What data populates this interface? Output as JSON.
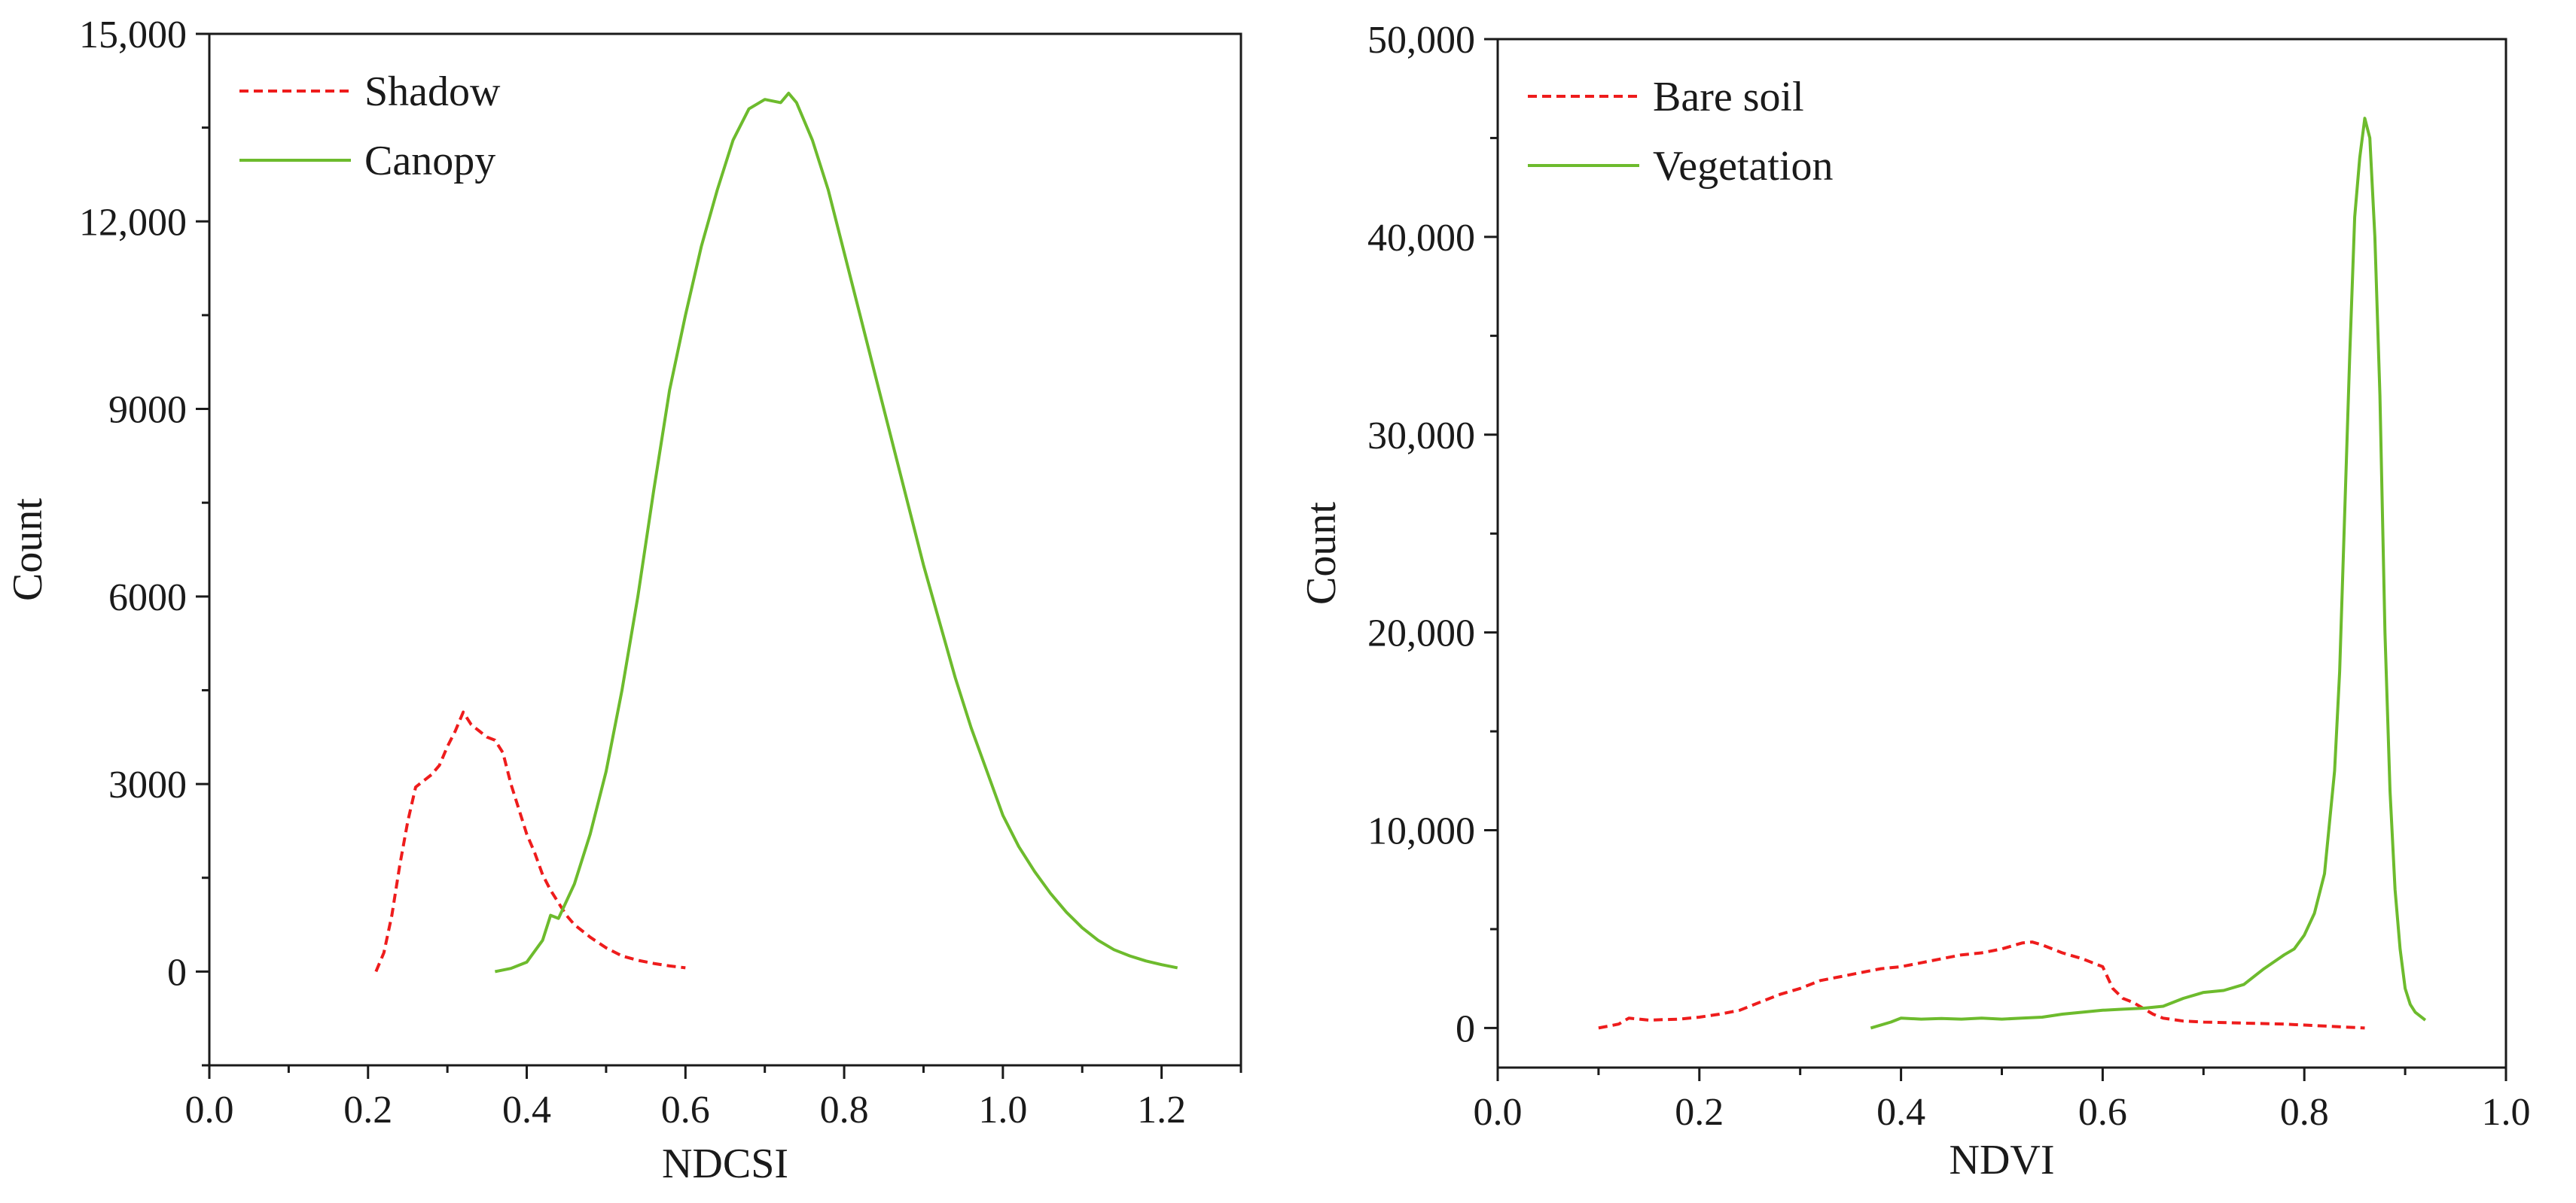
{
  "chart_data": [
    {
      "type": "line",
      "xlabel": "NDCSI",
      "ylabel": "Count",
      "xlim": [
        0.0,
        1.3
      ],
      "ylim": [
        -1500,
        15000
      ],
      "x_ticks": [
        0.0,
        0.2,
        0.4,
        0.6,
        0.8,
        1.0,
        1.2
      ],
      "x_tick_labels": [
        "0.0",
        "0.2",
        "0.4",
        "0.6",
        "0.8",
        "1.0",
        "1.2"
      ],
      "y_ticks": [
        0,
        3000,
        6000,
        9000,
        12000,
        15000
      ],
      "y_tick_labels": [
        "0",
        "3000",
        "6000",
        "9000",
        "12,000",
        "15,000"
      ],
      "legend_position": "top-left",
      "series": [
        {
          "name": "Shadow",
          "color": "#ee1c1c",
          "dash": "dashed",
          "x": [
            0.21,
            0.22,
            0.23,
            0.24,
            0.25,
            0.26,
            0.27,
            0.28,
            0.29,
            0.3,
            0.31,
            0.32,
            0.33,
            0.34,
            0.35,
            0.36,
            0.37,
            0.38,
            0.39,
            0.4,
            0.41,
            0.42,
            0.43,
            0.44,
            0.45,
            0.46,
            0.48,
            0.5,
            0.52,
            0.54,
            0.56,
            0.58,
            0.6
          ],
          "y": [
            0,
            300,
            900,
            1700,
            2400,
            2950,
            3050,
            3150,
            3300,
            3600,
            3850,
            4150,
            3950,
            3850,
            3750,
            3700,
            3500,
            3000,
            2600,
            2200,
            1900,
            1550,
            1300,
            1100,
            900,
            750,
            550,
            380,
            250,
            180,
            130,
            90,
            60
          ]
        },
        {
          "name": "Canopy",
          "color": "#6dbb2d",
          "dash": "solid",
          "x": [
            0.36,
            0.38,
            0.4,
            0.42,
            0.43,
            0.44,
            0.46,
            0.48,
            0.5,
            0.52,
            0.54,
            0.56,
            0.58,
            0.6,
            0.62,
            0.64,
            0.66,
            0.68,
            0.7,
            0.72,
            0.73,
            0.74,
            0.76,
            0.78,
            0.8,
            0.82,
            0.84,
            0.86,
            0.88,
            0.9,
            0.92,
            0.94,
            0.96,
            0.98,
            1.0,
            1.02,
            1.04,
            1.06,
            1.08,
            1.1,
            1.12,
            1.14,
            1.16,
            1.18,
            1.2,
            1.22
          ],
          "y": [
            0,
            50,
            150,
            500,
            900,
            850,
            1400,
            2200,
            3200,
            4500,
            6000,
            7700,
            9300,
            10500,
            11600,
            12500,
            13300,
            13800,
            13950,
            13900,
            14050,
            13900,
            13300,
            12500,
            11500,
            10500,
            9500,
            8500,
            7500,
            6500,
            5600,
            4700,
            3900,
            3200,
            2500,
            2000,
            1600,
            1250,
            950,
            700,
            500,
            350,
            250,
            170,
            110,
            60
          ]
        }
      ]
    },
    {
      "type": "line",
      "xlabel": "NDVI",
      "ylabel": "Count",
      "xlim": [
        0.0,
        1.0
      ],
      "ylim": [
        -2000,
        50000
      ],
      "x_ticks": [
        0.0,
        0.2,
        0.4,
        0.6,
        0.8,
        1.0
      ],
      "x_tick_labels": [
        "0.0",
        "0.2",
        "0.4",
        "0.6",
        "0.8",
        "1.0"
      ],
      "y_ticks": [
        0,
        10000,
        20000,
        30000,
        40000,
        50000
      ],
      "y_tick_labels": [
        "0",
        "10,000",
        "20,000",
        "30,000",
        "40,000",
        "50,000"
      ],
      "legend_position": "top-left",
      "series": [
        {
          "name": "Bare soil",
          "color": "#ee1c1c",
          "dash": "dashed",
          "x": [
            0.1,
            0.12,
            0.13,
            0.15,
            0.18,
            0.2,
            0.22,
            0.24,
            0.26,
            0.28,
            0.3,
            0.32,
            0.34,
            0.36,
            0.38,
            0.4,
            0.42,
            0.44,
            0.46,
            0.48,
            0.5,
            0.52,
            0.53,
            0.54,
            0.56,
            0.58,
            0.59,
            0.6,
            0.61,
            0.62,
            0.63,
            0.64,
            0.65,
            0.66,
            0.68,
            0.7,
            0.74,
            0.78,
            0.82,
            0.86
          ],
          "y": [
            0,
            200,
            500,
            400,
            450,
            550,
            700,
            900,
            1300,
            1700,
            2000,
            2400,
            2600,
            2800,
            3000,
            3100,
            3300,
            3500,
            3700,
            3800,
            4000,
            4300,
            4350,
            4200,
            3800,
            3500,
            3300,
            3100,
            2000,
            1500,
            1300,
            1000,
            700,
            500,
            350,
            300,
            250,
            200,
            100,
            0
          ]
        },
        {
          "name": "Vegetation",
          "color": "#6dbb2d",
          "dash": "solid",
          "x": [
            0.37,
            0.39,
            0.4,
            0.42,
            0.44,
            0.46,
            0.48,
            0.5,
            0.52,
            0.54,
            0.56,
            0.58,
            0.6,
            0.62,
            0.64,
            0.66,
            0.68,
            0.7,
            0.72,
            0.74,
            0.76,
            0.78,
            0.79,
            0.8,
            0.81,
            0.82,
            0.83,
            0.835,
            0.84,
            0.845,
            0.85,
            0.855,
            0.86,
            0.865,
            0.87,
            0.875,
            0.88,
            0.885,
            0.89,
            0.895,
            0.9,
            0.905,
            0.91,
            0.92
          ],
          "y": [
            0,
            300,
            500,
            450,
            480,
            450,
            500,
            450,
            500,
            550,
            700,
            800,
            900,
            950,
            1000,
            1100,
            1500,
            1800,
            1900,
            2200,
            3000,
            3700,
            4000,
            4700,
            5800,
            7800,
            13000,
            18000,
            26000,
            34000,
            41000,
            44000,
            46000,
            45000,
            40000,
            32000,
            20000,
            12000,
            7000,
            4000,
            2000,
            1200,
            800,
            400
          ]
        }
      ]
    }
  ]
}
